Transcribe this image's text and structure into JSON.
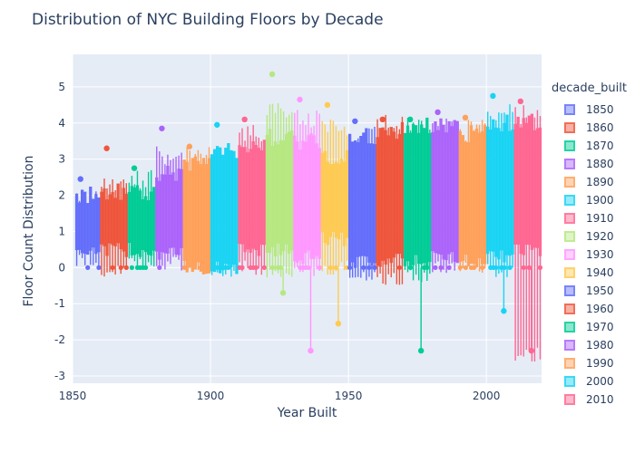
{
  "chart_data": {
    "type": "scatter",
    "title": "Distribution of NYC Building Floors by Decade",
    "xlabel": "Year Built",
    "ylabel": "Floor Count Distribution",
    "xlim": [
      1850,
      2020
    ],
    "ylim": [
      -3.2,
      5.9
    ],
    "xticks": [
      1850,
      1900,
      1950,
      2000
    ],
    "yticks": [
      -3,
      -2,
      -1,
      0,
      1,
      2,
      3,
      4,
      5
    ],
    "grid": true,
    "legend_title": "decade_built",
    "legend_position": "right",
    "series": [
      {
        "name": "1850",
        "color": "#636efa",
        "x_range": [
          1851,
          1859
        ],
        "box": [
          0.5,
          2.0
        ],
        "whisker": [
          0,
          2.2
        ],
        "outliers": [
          2.45,
          0
        ]
      },
      {
        "name": "1860",
        "color": "#EF553B",
        "x_range": [
          1860,
          1869
        ],
        "box": [
          0.5,
          2.1
        ],
        "whisker": [
          -0.3,
          2.6
        ],
        "outliers": [
          3.3,
          0
        ]
      },
      {
        "name": "1870",
        "color": "#00cc96",
        "x_range": [
          1870,
          1879
        ],
        "box": [
          0.5,
          2.1
        ],
        "whisker": [
          -0.1,
          2.7
        ],
        "outliers": [
          2.75,
          0
        ]
      },
      {
        "name": "1880",
        "color": "#ab63fa",
        "x_range": [
          1880,
          1889
        ],
        "box": [
          0.4,
          2.6
        ],
        "whisker": [
          -0.1,
          3.4
        ],
        "outliers": [
          3.85,
          0
        ]
      },
      {
        "name": "1890",
        "color": "#FFA15A",
        "x_range": [
          1890,
          1899
        ],
        "box": [
          0.0,
          2.9
        ],
        "whisker": [
          -0.1,
          3.35
        ],
        "outliers": [
          3.35,
          0
        ]
      },
      {
        "name": "1900",
        "color": "#19d3f3",
        "x_range": [
          1900,
          1909
        ],
        "box": [
          0.0,
          3.2
        ],
        "whisker": [
          -0.3,
          3.4
        ],
        "outliers": [
          3.95,
          0
        ]
      },
      {
        "name": "1910",
        "color": "#FF6692",
        "x_range": [
          1910,
          1919
        ],
        "box": [
          0.5,
          3.4
        ],
        "whisker": [
          -0.2,
          4.0
        ],
        "outliers": [
          4.1,
          0
        ]
      },
      {
        "name": "1920",
        "color": "#B6E880",
        "x_range": [
          1920,
          1929
        ],
        "box": [
          0.5,
          3.6
        ],
        "whisker": [
          -0.3,
          4.6
        ],
        "outliers": [
          5.35,
          -0.7
        ]
      },
      {
        "name": "1930",
        "color": "#FF97FF",
        "x_range": [
          1930,
          1939
        ],
        "box": [
          0.3,
          3.5
        ],
        "whisker": [
          -0.3,
          4.4
        ],
        "outliers": [
          4.65,
          -2.3
        ]
      },
      {
        "name": "1940",
        "color": "#FECB52",
        "x_range": [
          1940,
          1949
        ],
        "box": [
          0.8,
          3.1
        ],
        "whisker": [
          -0.2,
          4.2
        ],
        "outliers": [
          4.5,
          -1.55
        ]
      },
      {
        "name": "1950",
        "color": "#636efa",
        "x_range": [
          1950,
          1959
        ],
        "box": [
          0.2,
          3.6
        ],
        "whisker": [
          -0.4,
          4.0
        ],
        "outliers": [
          4.05,
          0
        ]
      },
      {
        "name": "1960",
        "color": "#EF553B",
        "x_range": [
          1960,
          1969
        ],
        "box": [
          0.2,
          3.8
        ],
        "whisker": [
          -0.5,
          4.3
        ],
        "outliers": [
          4.1,
          0
        ]
      },
      {
        "name": "1970",
        "color": "#00cc96",
        "x_range": [
          1970,
          1979
        ],
        "box": [
          0.2,
          3.9
        ],
        "whisker": [
          -0.4,
          4.2
        ],
        "outliers": [
          4.1,
          -2.3
        ]
      },
      {
        "name": "1980",
        "color": "#ab63fa",
        "x_range": [
          1980,
          1989
        ],
        "box": [
          0.3,
          3.9
        ],
        "whisker": [
          -0.2,
          4.3
        ],
        "outliers": [
          4.3,
          0
        ]
      },
      {
        "name": "1990",
        "color": "#FFA15A",
        "x_range": [
          1990,
          1999
        ],
        "box": [
          0.2,
          3.7
        ],
        "whisker": [
          -0.2,
          4.1
        ],
        "outliers": [
          4.15,
          0
        ]
      },
      {
        "name": "2000",
        "color": "#19d3f3",
        "x_range": [
          2000,
          2009
        ],
        "box": [
          0.3,
          4.0
        ],
        "whisker": [
          -0.3,
          4.6
        ],
        "outliers": [
          4.75,
          -1.2
        ]
      },
      {
        "name": "2010",
        "color": "#FF6692",
        "x_range": [
          2010,
          2019
        ],
        "box": [
          0.5,
          4.0
        ],
        "whisker": [
          -2.6,
          4.5
        ],
        "outliers": [
          4.6,
          -2.3
        ]
      }
    ]
  }
}
